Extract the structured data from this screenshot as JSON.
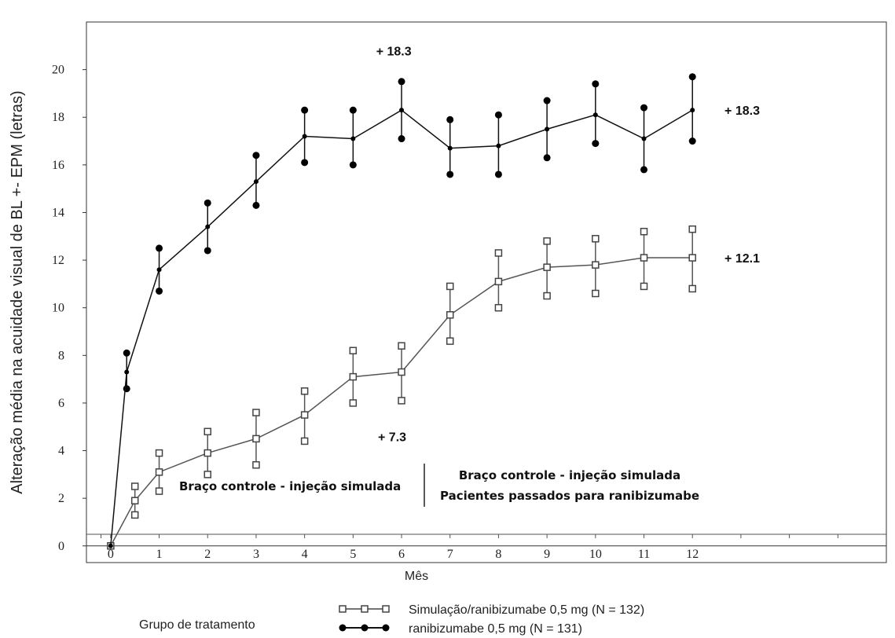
{
  "chart_data": {
    "type": "line",
    "xlabel": "Mês",
    "ylabel": "Alteração média na acuidade visual de BL +- EPM (letras)",
    "xlim": [
      -0.5,
      16
    ],
    "ylim": [
      -0.7,
      22
    ],
    "x_ticks": [
      0,
      1,
      2,
      3,
      4,
      5,
      6,
      7,
      8,
      9,
      10,
      11,
      12
    ],
    "y_ticks": [
      0,
      2,
      4,
      6,
      8,
      10,
      12,
      14,
      16,
      18,
      20
    ],
    "series": [
      {
        "name": "Simulação/ranibizumabe 0,5 mg (N = 132)",
        "marker": "square-open",
        "x": [
          0,
          0.5,
          1,
          2,
          3,
          4,
          5,
          6,
          7,
          8,
          9,
          10,
          11,
          12
        ],
        "y": [
          0,
          1.9,
          3.1,
          3.9,
          4.5,
          5.5,
          7.1,
          7.3,
          9.7,
          11.1,
          11.7,
          11.8,
          12.1,
          12.1
        ],
        "err_low": [
          0,
          1.3,
          2.3,
          3.0,
          3.4,
          4.4,
          6.0,
          6.1,
          8.6,
          10.0,
          10.5,
          10.6,
          10.9,
          10.8
        ],
        "err_high": [
          0,
          2.5,
          3.9,
          4.8,
          5.6,
          6.5,
          8.2,
          8.4,
          10.9,
          12.3,
          12.8,
          12.9,
          13.2,
          13.3
        ]
      },
      {
        "name": "ranibizumabe 0,5 mg (N = 131)",
        "marker": "circle-filled",
        "x": [
          0,
          0.33,
          1,
          2,
          3,
          4,
          5,
          6,
          7,
          8,
          9,
          10,
          11,
          12
        ],
        "y": [
          0,
          7.3,
          11.6,
          13.4,
          15.3,
          17.2,
          17.1,
          18.3,
          16.7,
          16.8,
          17.5,
          18.1,
          17.1,
          18.3
        ],
        "err_low": [
          0,
          6.6,
          10.7,
          12.4,
          14.3,
          16.1,
          16.0,
          17.1,
          15.6,
          15.6,
          16.3,
          16.9,
          15.8,
          17.0
        ],
        "err_high": [
          0,
          8.1,
          12.5,
          14.4,
          16.4,
          18.3,
          18.3,
          19.5,
          17.9,
          18.1,
          18.7,
          19.4,
          18.4,
          19.7
        ]
      }
    ],
    "annotations": [
      {
        "text": "+ 18.3",
        "near": "month 6, ranibizumabe"
      },
      {
        "text": "+ 18.3",
        "near": "month 12, ranibizumabe"
      },
      {
        "text": "+ 7.3",
        "near": "month 6, simulação"
      },
      {
        "text": "+ 12.1",
        "near": "month 12, simulação"
      }
    ],
    "phase_labels": {
      "left": "Braço controle - injeção simulada",
      "right_line1": "Braço controle - injeção simulada",
      "right_line2": "Pacientes passados para ranibizumabe"
    },
    "legend": {
      "title": "Grupo de tratamento",
      "placement": "bottom",
      "items": [
        "Simulação/ranibizumabe 0,5 mg (N = 132)",
        "ranibizumabe 0,5 mg (N = 131)"
      ]
    },
    "grid": false
  }
}
